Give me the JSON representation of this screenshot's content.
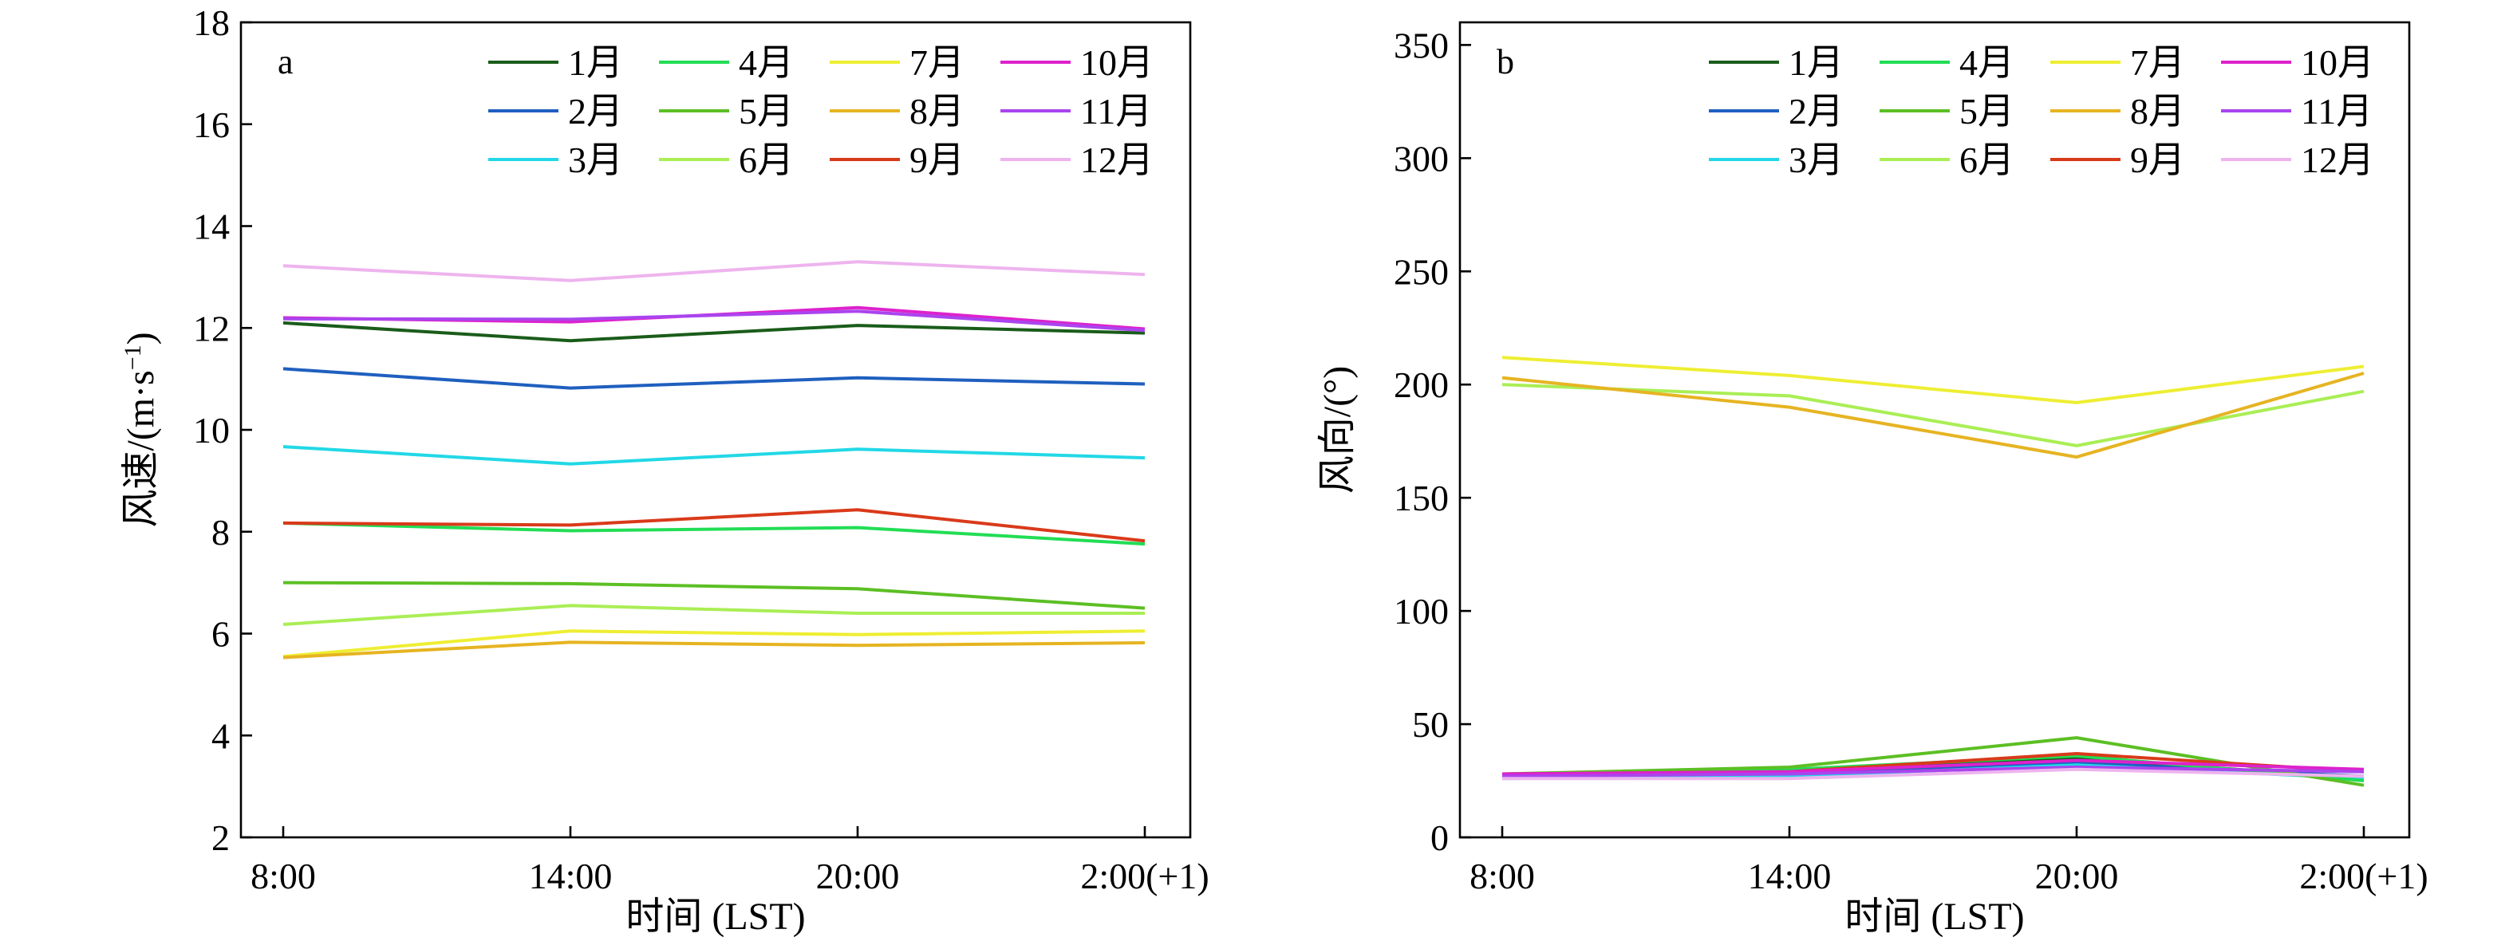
{
  "chart_data": [
    {
      "type": "line",
      "panel_label": "a",
      "xlabel": "时间 (LST)",
      "ylabel_main": "风速/(m·s",
      "ylabel_sup": "−1",
      "ylabel_end": ")",
      "categories": [
        "8:00",
        "14:00",
        "20:00",
        "2:00(+1)"
      ],
      "ylim": [
        2,
        18
      ],
      "yticks": [
        2,
        4,
        6,
        8,
        10,
        12,
        14,
        16,
        18
      ],
      "grid": false,
      "legend_position": "top-right",
      "legend_columns": 4,
      "series": [
        {
          "name": "1月",
          "color": "#1a5c1a",
          "values": [
            12.1,
            11.75,
            12.05,
            11.9
          ]
        },
        {
          "name": "2月",
          "color": "#1f5fbf",
          "values": [
            11.2,
            10.82,
            11.02,
            10.9
          ]
        },
        {
          "name": "3月",
          "color": "#22d8e6",
          "values": [
            9.67,
            9.33,
            9.62,
            9.45
          ]
        },
        {
          "name": "4月",
          "color": "#22dd55",
          "values": [
            8.17,
            8.02,
            8.08,
            7.76
          ]
        },
        {
          "name": "5月",
          "color": "#5cbf24",
          "values": [
            7.0,
            6.98,
            6.88,
            6.5
          ]
        },
        {
          "name": "6月",
          "color": "#aaee55",
          "values": [
            6.18,
            6.55,
            6.4,
            6.4
          ]
        },
        {
          "name": "7月",
          "color": "#eeee33",
          "values": [
            5.55,
            6.05,
            5.98,
            6.05
          ]
        },
        {
          "name": "8月",
          "color": "#e6b422",
          "values": [
            5.53,
            5.83,
            5.77,
            5.82
          ]
        },
        {
          "name": "9月",
          "color": "#d93a1a",
          "values": [
            8.17,
            8.13,
            8.43,
            7.82
          ]
        },
        {
          "name": "10月",
          "color": "#dd22cc",
          "values": [
            12.2,
            12.12,
            12.4,
            11.98
          ]
        },
        {
          "name": "11月",
          "color": "#aa44ee",
          "values": [
            12.18,
            12.17,
            12.33,
            11.95
          ]
        },
        {
          "name": "12月",
          "color": "#eeb4ee",
          "values": [
            13.22,
            12.93,
            13.3,
            13.05
          ]
        }
      ]
    },
    {
      "type": "line",
      "panel_label": "b",
      "xlabel": "时间 (LST)",
      "ylabel_main": "风向/(°)",
      "ylabel_sup": "",
      "ylabel_end": "",
      "categories": [
        "8:00",
        "14:00",
        "20:00",
        "2:00(+1)"
      ],
      "ylim": [
        0,
        360
      ],
      "yticks": [
        0,
        50,
        100,
        150,
        200,
        250,
        300,
        350
      ],
      "grid": false,
      "legend_position": "top-right",
      "legend_columns": 4,
      "series": [
        {
          "name": "1月",
          "color": "#1a5c1a",
          "values": [
            28,
            29,
            35,
            26
          ]
        },
        {
          "name": "2月",
          "color": "#1f5fbf",
          "values": [
            27,
            28,
            33,
            27
          ]
        },
        {
          "name": "3月",
          "color": "#22d8e6",
          "values": [
            26,
            27,
            32,
            26
          ]
        },
        {
          "name": "4月",
          "color": "#22dd55",
          "values": [
            27,
            30,
            36,
            25
          ]
        },
        {
          "name": "5月",
          "color": "#5cbf24",
          "values": [
            28,
            31,
            44,
            23
          ]
        },
        {
          "name": "6月",
          "color": "#aaee55",
          "values": [
            200,
            195,
            173,
            197
          ]
        },
        {
          "name": "7月",
          "color": "#eeee33",
          "values": [
            212,
            204,
            192,
            208
          ]
        },
        {
          "name": "8月",
          "color": "#e6b422",
          "values": [
            203,
            190,
            168,
            205
          ]
        },
        {
          "name": "9月",
          "color": "#d93a1a",
          "values": [
            28,
            29,
            37,
            29
          ]
        },
        {
          "name": "10月",
          "color": "#dd22cc",
          "values": [
            28,
            29,
            34,
            30
          ]
        },
        {
          "name": "11月",
          "color": "#aa44ee",
          "values": [
            27,
            28,
            31,
            29
          ]
        },
        {
          "name": "12月",
          "color": "#eeb4ee",
          "values": [
            26,
            26,
            30,
            27
          ]
        }
      ]
    }
  ]
}
